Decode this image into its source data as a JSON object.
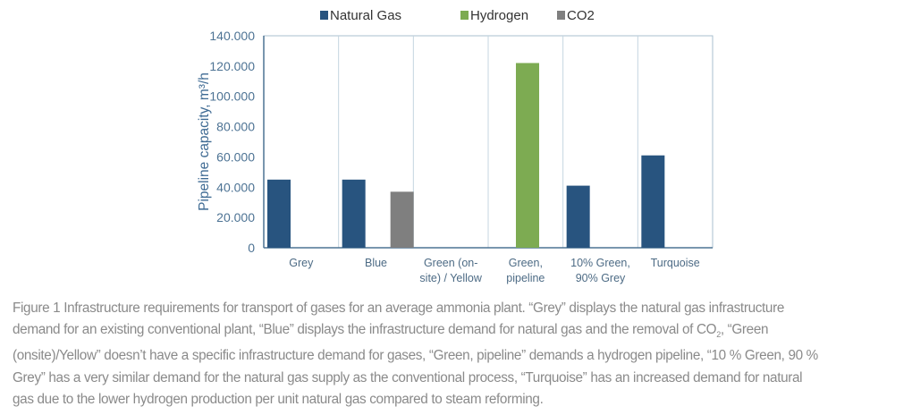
{
  "chart_data": {
    "type": "bar",
    "ylabel": "Pipeline capacity, m³/h",
    "ylim": [
      0,
      140000
    ],
    "yticks": [
      0,
      20000,
      40000,
      60000,
      80000,
      100000,
      120000,
      140000
    ],
    "ytick_labels": [
      "0",
      "20.000",
      "40.000",
      "60.000",
      "80.000",
      "100.000",
      "120.000",
      "140.000"
    ],
    "categories": [
      [
        "Grey"
      ],
      [
        "Blue"
      ],
      [
        "Green (on-",
        "site) / Yellow"
      ],
      [
        "Green,",
        "pipeline"
      ],
      [
        "10% Green,",
        "90% Grey"
      ],
      [
        "Turquoise"
      ]
    ],
    "legend_position": "top",
    "grid": "vertical category separators",
    "series": [
      {
        "name": "Natural Gas",
        "color": "#28547f",
        "values": [
          45000,
          45000,
          0,
          0,
          41000,
          61000
        ]
      },
      {
        "name": "Hydrogen",
        "color": "#7dab52",
        "values": [
          0,
          0,
          0,
          122000,
          0,
          0
        ]
      },
      {
        "name": "CO2",
        "color": "#7f7f7f",
        "values": [
          0,
          37000,
          0,
          0,
          0,
          0
        ]
      }
    ]
  },
  "caption": {
    "line1": "Figure 1 Infrastructure requirements for transport of gases for an average ammonia plant. “Grey” displays the natural gas infrastructure",
    "line2_pre": "demand for an existing conventional plant, “Blue” displays the infrastructure demand for natural gas and the removal of CO",
    "line2_sub": "2",
    "line2_post": ", “Green",
    "line3": "(onsite)/Yellow” doesn’t have a specific infrastructure demand for gases, “Green, pipeline” demands a hydrogen pipeline, “10 % Green, 90 %",
    "line4": "Grey” has a very similar demand for the natural gas supply as the conventional process, “Turquoise” has an increased demand for natural",
    "line5": "gas due to the lower hydrogen production per unit natural gas compared to steam reforming."
  }
}
